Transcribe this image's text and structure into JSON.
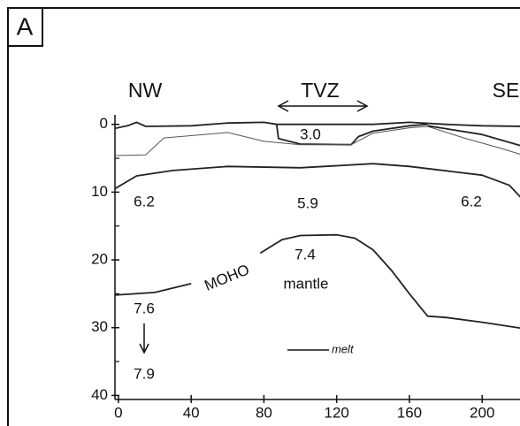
{
  "chart_data": {
    "type": "line",
    "panel_label": "A",
    "direction_left": "NW",
    "direction_right": "SE",
    "region_label": "TVZ",
    "annotations": [
      "3.0",
      "6.2",
      "5.9",
      "6.2",
      "7.4",
      "mantle",
      "7.6",
      "7.9",
      "MOHO"
    ],
    "legend_label": "melt",
    "xlim": [
      -1.9,
      220.8
    ],
    "ylim": [
      -1.4,
      40.6
    ],
    "xticks": [
      0,
      40,
      80,
      120,
      160,
      200
    ],
    "yticks": [
      0,
      10,
      20,
      30,
      40
    ],
    "yminorticks": [
      5,
      15,
      25,
      35
    ],
    "series": [
      {
        "color": "#222222",
        "x": [
          -2,
          5,
          10,
          15,
          40,
          60,
          80,
          87,
          100,
          128,
          140,
          160,
          180,
          200,
          222
        ],
        "values": [
          0.6,
          0.2,
          -0.3,
          0.3,
          0.2,
          -0.2,
          -0.3,
          0,
          0,
          0,
          0,
          -0.3,
          0,
          0.2,
          0.3
        ]
      },
      {
        "color": "#222222",
        "x": [
          87,
          88,
          100,
          128,
          132,
          140,
          160,
          170
        ],
        "values": [
          0,
          2.1,
          2.9,
          3.0,
          1.8,
          1.0,
          0.2,
          0
        ]
      },
      {
        "color": "#555555",
        "x": [
          -2,
          15,
          25,
          60,
          80,
          100,
          128,
          140,
          160,
          170,
          190,
          210,
          222
        ],
        "values": [
          4.6,
          4.5,
          2.0,
          1.2,
          2.5,
          3.0,
          3.0,
          1.3,
          0.5,
          0.3,
          2.0,
          3.5,
          4.5
        ]
      },
      {
        "color": "#222222",
        "x": [
          170,
          200,
          222
        ],
        "values": [
          0.2,
          1.5,
          3.2
        ]
      },
      {
        "color": "#222222",
        "x": [
          -2,
          10,
          30,
          60,
          100,
          140,
          160,
          200,
          215,
          222
        ],
        "values": [
          9.5,
          7.6,
          6.8,
          6.2,
          6.4,
          5.8,
          6.2,
          7.5,
          9.0,
          11.0
        ]
      },
      {
        "color": "#222222",
        "x": [
          -2,
          20,
          40,
          60,
          78,
          90,
          100,
          120,
          130,
          140,
          150,
          160,
          170,
          180,
          200,
          222
        ],
        "values": [
          25.2,
          24.8,
          23.5,
          null,
          19.0,
          17.0,
          16.4,
          16.3,
          16.8,
          18.5,
          21.5,
          25.0,
          28.3,
          28.5,
          29.2,
          30.1
        ]
      }
    ]
  }
}
